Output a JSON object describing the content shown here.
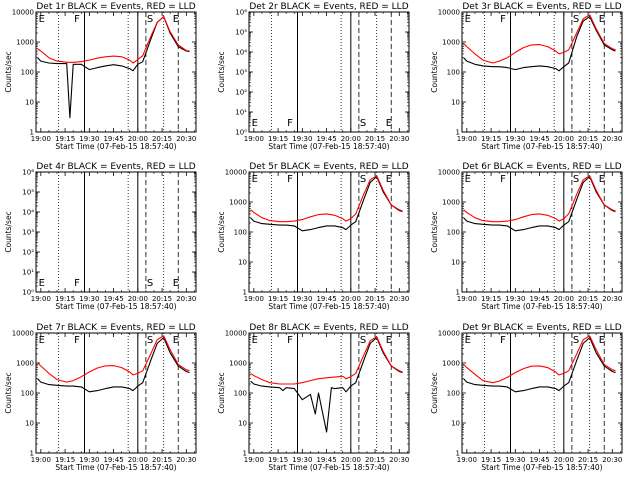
{
  "figure": {
    "xtick_labels": [
      "19:00",
      "19:15",
      "19:30",
      "19:45",
      "20:00",
      "20:15",
      "20:30"
    ],
    "xlabel": "Start Time (07-Feb-15 18:57:40)",
    "ylabel": "Counts/sec",
    "colors": {
      "events": "#000000",
      "lld": "#ff0000",
      "background": "#ffffff"
    }
  },
  "chart_data": [
    {
      "type": "line",
      "title": "Det 1r BLACK = Events, RED = LLD",
      "ylog": true,
      "ylim": [
        1,
        10000
      ],
      "yticks": [
        "1",
        "10",
        "100",
        "1000",
        "10000"
      ],
      "markers": [
        "E",
        "F",
        "S",
        "E"
      ],
      "series": [
        {
          "key": "events",
          "x": [
            "18:58",
            "19:00",
            "19:05",
            "19:10",
            "19:16",
            "19:18",
            "19:20",
            "19:25",
            "19:30",
            "19:35",
            "19:40",
            "19:45",
            "19:50",
            "19:55",
            "19:57",
            "20:00",
            "20:03",
            "20:08",
            "20:12",
            "20:16",
            "20:20",
            "20:25",
            "20:30",
            "20:32"
          ],
          "y": [
            300,
            230,
            200,
            190,
            190,
            3,
            180,
            180,
            120,
            140,
            160,
            175,
            160,
            130,
            110,
            180,
            220,
            1200,
            4500,
            7000,
            2000,
            700,
            500,
            480
          ]
        },
        {
          "key": "lld",
          "x": [
            "18:58",
            "19:00",
            "19:05",
            "19:10",
            "19:16",
            "19:20",
            "19:25",
            "19:30",
            "19:35",
            "19:40",
            "19:45",
            "19:50",
            "19:55",
            "19:57",
            "20:00",
            "20:03",
            "20:08",
            "20:12",
            "20:16",
            "20:20",
            "20:25",
            "20:30",
            "20:32"
          ],
          "y": [
            600,
            500,
            300,
            230,
            210,
            210,
            220,
            250,
            290,
            320,
            340,
            320,
            250,
            200,
            260,
            350,
            1500,
            4500,
            7000,
            2200,
            800,
            520,
            500
          ]
        }
      ]
    },
    {
      "type": "line",
      "title": "Det 2r BLACK = Events, RED = LLD",
      "ylog": true,
      "ylim": [
        1,
        1000000
      ],
      "yticks": [
        "10⁰",
        "10¹",
        "10²",
        "10³",
        "10⁴",
        "10⁵",
        "10⁶"
      ],
      "markers": [
        "E",
        "F",
        "S",
        "E"
      ],
      "series": []
    },
    {
      "type": "line",
      "title": "Det 3r BLACK = Events, RED = LLD",
      "ylog": true,
      "ylim": [
        1,
        10000
      ],
      "yticks": [
        "1",
        "10",
        "100",
        "1000",
        "10000"
      ],
      "markers": [
        "E",
        "F",
        "S",
        "E"
      ],
      "series": [
        {
          "key": "events",
          "x": [
            "18:58",
            "19:00",
            "19:05",
            "19:10",
            "19:16",
            "19:20",
            "19:25",
            "19:30",
            "19:35",
            "19:40",
            "19:45",
            "19:50",
            "19:55",
            "19:57",
            "20:00",
            "20:03",
            "20:08",
            "20:12",
            "20:16",
            "20:20",
            "20:25",
            "20:30",
            "20:32"
          ],
          "y": [
            300,
            230,
            180,
            160,
            150,
            150,
            140,
            120,
            140,
            150,
            160,
            150,
            130,
            110,
            150,
            200,
            1500,
            5000,
            7000,
            2500,
            800,
            550,
            500
          ]
        },
        {
          "key": "lld",
          "x": [
            "18:58",
            "19:00",
            "19:05",
            "19:10",
            "19:16",
            "19:20",
            "19:25",
            "19:30",
            "19:35",
            "19:40",
            "19:45",
            "19:50",
            "19:55",
            "19:57",
            "20:00",
            "20:03",
            "20:08",
            "20:12",
            "20:16",
            "20:20",
            "20:25",
            "20:30",
            "20:32"
          ],
          "y": [
            900,
            700,
            400,
            250,
            200,
            230,
            300,
            450,
            650,
            800,
            820,
            700,
            500,
            400,
            450,
            550,
            2000,
            6000,
            8000,
            2800,
            900,
            600,
            550
          ]
        }
      ]
    },
    {
      "type": "line",
      "title": "Det 4r BLACK = Events, RED = LLD",
      "ylog": true,
      "ylim": [
        1,
        1000000
      ],
      "yticks": [
        "10⁰",
        "10¹",
        "10²",
        "10³",
        "10⁴",
        "10⁵",
        "10⁶"
      ],
      "markers": [
        "E",
        "F",
        "S",
        "E"
      ],
      "series": []
    },
    {
      "type": "line",
      "title": "Det 5r BLACK = Events, RED = LLD",
      "ylog": true,
      "ylim": [
        1,
        10000
      ],
      "yticks": [
        "1",
        "10",
        "100",
        "1000",
        "10000"
      ],
      "markers": [
        "E",
        "F",
        "S",
        "E"
      ],
      "series": [
        {
          "key": "events",
          "x": [
            "18:58",
            "19:00",
            "19:05",
            "19:10",
            "19:16",
            "19:20",
            "19:25",
            "19:30",
            "19:35",
            "19:40",
            "19:45",
            "19:50",
            "19:55",
            "19:57",
            "20:00",
            "20:03",
            "20:08",
            "20:12",
            "20:16",
            "20:20",
            "20:25",
            "20:30",
            "20:32"
          ],
          "y": [
            300,
            230,
            190,
            180,
            170,
            170,
            160,
            110,
            120,
            140,
            160,
            160,
            140,
            120,
            170,
            220,
            1200,
            4500,
            7000,
            2200,
            800,
            520,
            480
          ]
        },
        {
          "key": "lld",
          "x": [
            "18:58",
            "19:00",
            "19:05",
            "19:10",
            "19:16",
            "19:20",
            "19:25",
            "19:30",
            "19:35",
            "19:40",
            "19:45",
            "19:50",
            "19:55",
            "19:57",
            "20:00",
            "20:03",
            "20:08",
            "20:12",
            "20:16",
            "20:20",
            "20:25",
            "20:30",
            "20:32"
          ],
          "y": [
            550,
            450,
            300,
            240,
            220,
            220,
            230,
            260,
            320,
            380,
            400,
            360,
            280,
            230,
            280,
            400,
            1800,
            5500,
            7500,
            2500,
            800,
            550,
            500
          ]
        }
      ]
    },
    {
      "type": "line",
      "title": "Det 6r BLACK = Events, RED = LLD",
      "ylog": true,
      "ylim": [
        1,
        10000
      ],
      "yticks": [
        "1",
        "10",
        "100",
        "1000",
        "10000"
      ],
      "markers": [
        "E",
        "F",
        "S",
        "E"
      ],
      "series": [
        {
          "key": "events",
          "x": [
            "18:58",
            "19:00",
            "19:05",
            "19:10",
            "19:16",
            "19:20",
            "19:25",
            "19:30",
            "19:35",
            "19:40",
            "19:45",
            "19:50",
            "19:55",
            "19:57",
            "20:00",
            "20:03",
            "20:08",
            "20:12",
            "20:16",
            "20:20",
            "20:25",
            "20:30",
            "20:32"
          ],
          "y": [
            300,
            230,
            190,
            180,
            170,
            170,
            160,
            110,
            120,
            140,
            160,
            160,
            140,
            120,
            170,
            220,
            1200,
            4500,
            7000,
            2200,
            800,
            520,
            480
          ]
        },
        {
          "key": "lld",
          "x": [
            "18:58",
            "19:00",
            "19:05",
            "19:10",
            "19:16",
            "19:20",
            "19:25",
            "19:30",
            "19:35",
            "19:40",
            "19:45",
            "19:50",
            "19:55",
            "19:57",
            "20:00",
            "20:03",
            "20:08",
            "20:12",
            "20:16",
            "20:20",
            "20:25",
            "20:30",
            "20:32"
          ],
          "y": [
            550,
            450,
            300,
            240,
            220,
            220,
            230,
            260,
            320,
            380,
            400,
            360,
            280,
            230,
            280,
            400,
            1800,
            5500,
            7500,
            2500,
            800,
            550,
            500
          ]
        }
      ]
    },
    {
      "type": "line",
      "title": "Det 7r BLACK = Events, RED = LLD",
      "ylog": true,
      "ylim": [
        1,
        10000
      ],
      "yticks": [
        "1",
        "10",
        "100",
        "1000",
        "10000"
      ],
      "markers": [
        "E",
        "F",
        "S",
        "E"
      ],
      "series": [
        {
          "key": "events",
          "x": [
            "18:58",
            "19:00",
            "19:05",
            "19:10",
            "19:16",
            "19:20",
            "19:25",
            "19:30",
            "19:35",
            "19:40",
            "19:45",
            "19:50",
            "19:55",
            "19:57",
            "20:00",
            "20:03",
            "20:08",
            "20:12",
            "20:16",
            "20:20",
            "20:25",
            "20:30",
            "20:32"
          ],
          "y": [
            300,
            230,
            190,
            180,
            170,
            170,
            160,
            110,
            120,
            140,
            160,
            160,
            140,
            120,
            170,
            220,
            1200,
            4500,
            7000,
            2200,
            800,
            520,
            480
          ]
        },
        {
          "key": "lld",
          "x": [
            "18:58",
            "19:00",
            "19:05",
            "19:10",
            "19:16",
            "19:20",
            "19:25",
            "19:30",
            "19:35",
            "19:40",
            "19:45",
            "19:50",
            "19:55",
            "19:57",
            "20:00",
            "20:03",
            "20:08",
            "20:12",
            "20:16",
            "20:20",
            "20:25",
            "20:30",
            "20:32"
          ],
          "y": [
            1000,
            800,
            450,
            280,
            230,
            260,
            350,
            500,
            680,
            800,
            820,
            700,
            500,
            400,
            450,
            550,
            2000,
            6000,
            8000,
            2800,
            900,
            600,
            550
          ]
        }
      ]
    },
    {
      "type": "line",
      "title": "Det 8r BLACK = Events, RED = LLD",
      "ylog": true,
      "ylim": [
        1,
        10000
      ],
      "yticks": [
        "1",
        "10",
        "100",
        "1000",
        "10000"
      ],
      "markers": [
        "E",
        "F",
        "S",
        "E"
      ],
      "series": [
        {
          "key": "events",
          "x": [
            "18:58",
            "19:00",
            "19:05",
            "19:10",
            "19:16",
            "19:18",
            "19:20",
            "19:25",
            "19:30",
            "19:35",
            "19:38",
            "19:40",
            "19:45",
            "19:48",
            "19:50",
            "19:55",
            "19:57",
            "20:00",
            "20:03",
            "20:08",
            "20:12",
            "20:16",
            "20:20",
            "20:25",
            "20:30",
            "20:32"
          ],
          "y": [
            250,
            200,
            170,
            160,
            150,
            120,
            150,
            140,
            60,
            90,
            20,
            100,
            5,
            150,
            140,
            150,
            110,
            170,
            220,
            1200,
            4500,
            7000,
            2200,
            800,
            520,
            480
          ]
        },
        {
          "key": "lld",
          "x": [
            "18:58",
            "19:00",
            "19:05",
            "19:10",
            "19:16",
            "19:20",
            "19:25",
            "19:30",
            "19:35",
            "19:40",
            "19:45",
            "19:50",
            "19:55",
            "19:57",
            "20:00",
            "20:03",
            "20:08",
            "20:12",
            "20:16",
            "20:20",
            "20:25",
            "20:30",
            "20:32"
          ],
          "y": [
            450,
            380,
            280,
            220,
            200,
            200,
            200,
            220,
            260,
            300,
            320,
            340,
            360,
            300,
            350,
            450,
            1800,
            5500,
            7500,
            2500,
            800,
            550,
            500
          ]
        }
      ]
    },
    {
      "type": "line",
      "title": "Det 9r BLACK = Events, RED = LLD",
      "ylog": true,
      "ylim": [
        1,
        10000
      ],
      "yticks": [
        "1",
        "10",
        "100",
        "1000",
        "10000"
      ],
      "markers": [
        "E",
        "F",
        "S",
        "E"
      ],
      "series": [
        {
          "key": "events",
          "x": [
            "18:58",
            "19:00",
            "19:05",
            "19:10",
            "19:16",
            "19:20",
            "19:25",
            "19:30",
            "19:35",
            "19:40",
            "19:45",
            "19:50",
            "19:55",
            "19:57",
            "20:00",
            "20:03",
            "20:08",
            "20:12",
            "20:16",
            "20:20",
            "20:25",
            "20:30",
            "20:32"
          ],
          "y": [
            300,
            230,
            190,
            180,
            170,
            170,
            160,
            110,
            120,
            140,
            160,
            160,
            140,
            120,
            170,
            220,
            1200,
            4500,
            7000,
            2200,
            800,
            520,
            480
          ]
        },
        {
          "key": "lld",
          "x": [
            "18:58",
            "19:00",
            "19:05",
            "19:10",
            "19:16",
            "19:20",
            "19:25",
            "19:30",
            "19:35",
            "19:40",
            "19:45",
            "19:50",
            "19:55",
            "19:57",
            "20:00",
            "20:03",
            "20:08",
            "20:12",
            "20:16",
            "20:20",
            "20:25",
            "20:30",
            "20:32"
          ],
          "y": [
            900,
            700,
            420,
            260,
            220,
            250,
            330,
            480,
            650,
            780,
            800,
            700,
            500,
            400,
            450,
            550,
            2000,
            6000,
            8000,
            2800,
            900,
            600,
            550
          ]
        }
      ]
    }
  ]
}
